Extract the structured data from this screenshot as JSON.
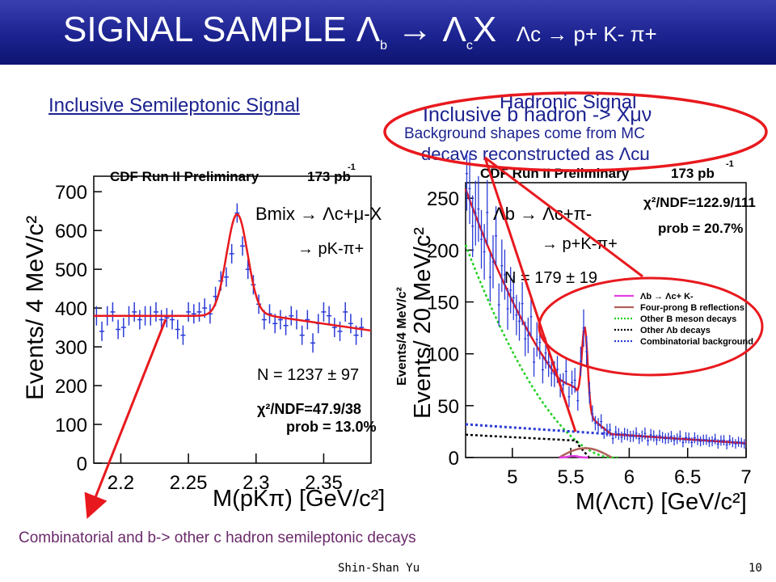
{
  "slide": {
    "title_main": "SIGNAL SAMPLE",
    "title_lambda_b": "Λ",
    "title_b_sub": "b",
    "title_arrow": "→",
    "title_lambda_c": "Λ",
    "title_c_sub": "c",
    "title_x": "X",
    "title_decay": "Λc → p+ K- π+",
    "left_heading": "Inclusive  Semileptonic Signal",
    "right_heading": "Hadronic Signal",
    "overlay_line1": "Inclusive b hadron -> Xμν",
    "overlay_line2": "Background shapes come from MC",
    "overlay_line3": "decays reconstructed as Λcμ",
    "bottom_note": "Combinatorial and b-> other c hadron semileptonic decays",
    "footer_author": "Shin-Shan Yu",
    "footer_page": "10"
  },
  "colors": {
    "title_bar": "#1c2390",
    "heading_text": "#1c2390",
    "annotation_red": "#e8191e",
    "note_text": "#6a2a6a"
  },
  "chart_data": [
    {
      "type": "scatter",
      "header_left": "CDF Run II Preliminary",
      "header_right": "173 pb",
      "header_exp": "-1",
      "xlabel": "M(pKπ) [GeV/c²]",
      "ylabel": "Events/ 4 MeV/c²",
      "xlim": [
        2.18,
        2.385
      ],
      "ylim": [
        0,
        740
      ],
      "xticks": [
        2.2,
        2.25,
        2.3,
        2.35
      ],
      "xtick_labels": [
        "2.2",
        "2.25",
        "2.3",
        "2.35"
      ],
      "yticks": [
        0,
        100,
        200,
        300,
        400,
        500,
        600,
        700
      ],
      "ytick_labels": [
        "0",
        "100",
        "200",
        "300",
        "400",
        "500",
        "600",
        "700"
      ],
      "annotations": {
        "decay_line1": "Bmix → Λc+μ-X",
        "decay_line2": "→ pK-π+",
        "yield": "N = 1237 ± 97",
        "chi2": "χ²/NDF=47.9/38",
        "prob": "prob = 13.0%"
      },
      "series": [
        {
          "kind": "points",
          "x": [
            2.182,
            2.186,
            2.19,
            2.194,
            2.198,
            2.202,
            2.206,
            2.21,
            2.214,
            2.218,
            2.222,
            2.226,
            2.23,
            2.234,
            2.238,
            2.242,
            2.246,
            2.25,
            2.254,
            2.258,
            2.262,
            2.266,
            2.27,
            2.274,
            2.278,
            2.282,
            2.286,
            2.29,
            2.294,
            2.298,
            2.302,
            2.306,
            2.31,
            2.314,
            2.318,
            2.322,
            2.326,
            2.33,
            2.334,
            2.338,
            2.342,
            2.346,
            2.35,
            2.354,
            2.358,
            2.362,
            2.366,
            2.37,
            2.374,
            2.378
          ],
          "y": [
            380,
            340,
            380,
            390,
            345,
            350,
            380,
            390,
            370,
            380,
            380,
            390,
            370,
            375,
            370,
            345,
            330,
            390,
            385,
            390,
            400,
            385,
            430,
            470,
            480,
            540,
            645,
            560,
            500,
            460,
            410,
            370,
            385,
            360,
            370,
            355,
            380,
            370,
            330,
            370,
            310,
            360,
            390,
            380,
            350,
            340,
            390,
            360,
            330,
            350
          ],
          "err": 25,
          "color": "#2a3bd6"
        },
        {
          "kind": "fit",
          "color": "#e8191e",
          "model": {
            "baseline": 380,
            "baseline_right": 342,
            "peak": 2.286,
            "sigma": 0.0078,
            "amplitude": 262
          }
        }
      ]
    },
    {
      "type": "scatter",
      "header_left": "CDF Run II Preliminary",
      "header_right": "173 pb",
      "header_exp": "-1",
      "xlabel": "M(Λcπ) [GeV/c²]",
      "ylabel": "Events/ 20 MeV/c²",
      "ylabel_inner": "Events/4 MeV/c²",
      "xlim": [
        4.6,
        7.0
      ],
      "ylim": [
        0,
        265
      ],
      "xticks": [
        5,
        5.5,
        6,
        6.5,
        7
      ],
      "xtick_labels": [
        "5",
        "5.5",
        "6",
        "6.5",
        "7"
      ],
      "yticks": [
        0,
        50,
        100,
        150,
        200,
        250
      ],
      "ytick_labels": [
        "0",
        "50",
        "100",
        "150",
        "200",
        "250"
      ],
      "annotations": {
        "decay_line1": "Λb → Λc+π-",
        "decay_line2": "→ p+K-π+",
        "yield": "N = 179 ± 19",
        "chi2": "χ²/NDF=122.9/111",
        "prob": "prob = 20.7%"
      },
      "legend": {
        "placement": "center-right",
        "entries": [
          {
            "label": "Λb → Λc+ K-",
            "color": "#e040e0",
            "style": "solid"
          },
          {
            "label": "Four-prong B reflections",
            "color": "#b0605a",
            "style": "solid"
          },
          {
            "label": "Other B meson decays",
            "color": "#20d020",
            "style": "dotted"
          },
          {
            "label": "Other Λb decays",
            "color": "#000000",
            "style": "dotted"
          },
          {
            "label": "Combinatorial background",
            "color": "#2a3bd6",
            "style": "dotted"
          }
        ]
      },
      "series": [
        {
          "kind": "points",
          "color": "#2a3bd6",
          "err_fraction": 0.12
        },
        {
          "kind": "fit_total",
          "color": "#e8191e"
        },
        {
          "kind": "green",
          "color": "#20d020"
        },
        {
          "kind": "black",
          "color": "#000000"
        },
        {
          "kind": "blue",
          "color": "#2a3bd6"
        },
        {
          "kind": "brown",
          "color": "#b0605a"
        },
        {
          "kind": "magenta",
          "color": "#e040e0"
        }
      ]
    }
  ]
}
